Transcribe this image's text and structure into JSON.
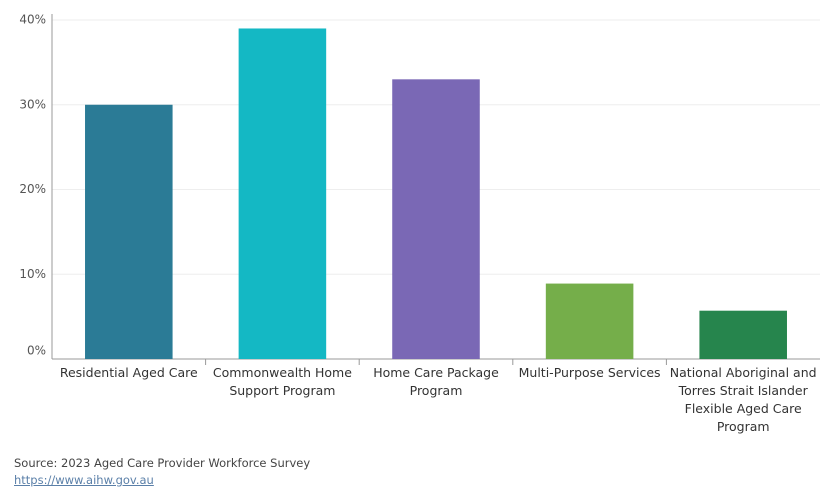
{
  "chart_data": {
    "type": "bar",
    "categories": [
      "Residential Aged Care",
      "Commonwealth Home Support Program",
      "Home Care Package Program",
      "Multi-Purpose Services",
      "National Aboriginal and Torres Strait Islander Flexible Aged Care Program"
    ],
    "values": [
      30,
      39,
      33,
      8.9,
      5.7
    ],
    "colors": [
      "#2b7b96",
      "#14b8c4",
      "#7a68b5",
      "#75ae4a",
      "#26854d"
    ],
    "ylim": [
      0,
      40
    ],
    "yticks": [
      {
        "value": 0,
        "label": "0%"
      },
      {
        "value": 10,
        "label": "10%"
      },
      {
        "value": 20,
        "label": "20%"
      },
      {
        "value": 30,
        "label": "30%"
      },
      {
        "value": 40,
        "label": "40%"
      }
    ],
    "grid": true,
    "source": "Source: 2023 Aged Care Provider Workforce Survey",
    "link": "https://www.aihw.gov.au"
  }
}
